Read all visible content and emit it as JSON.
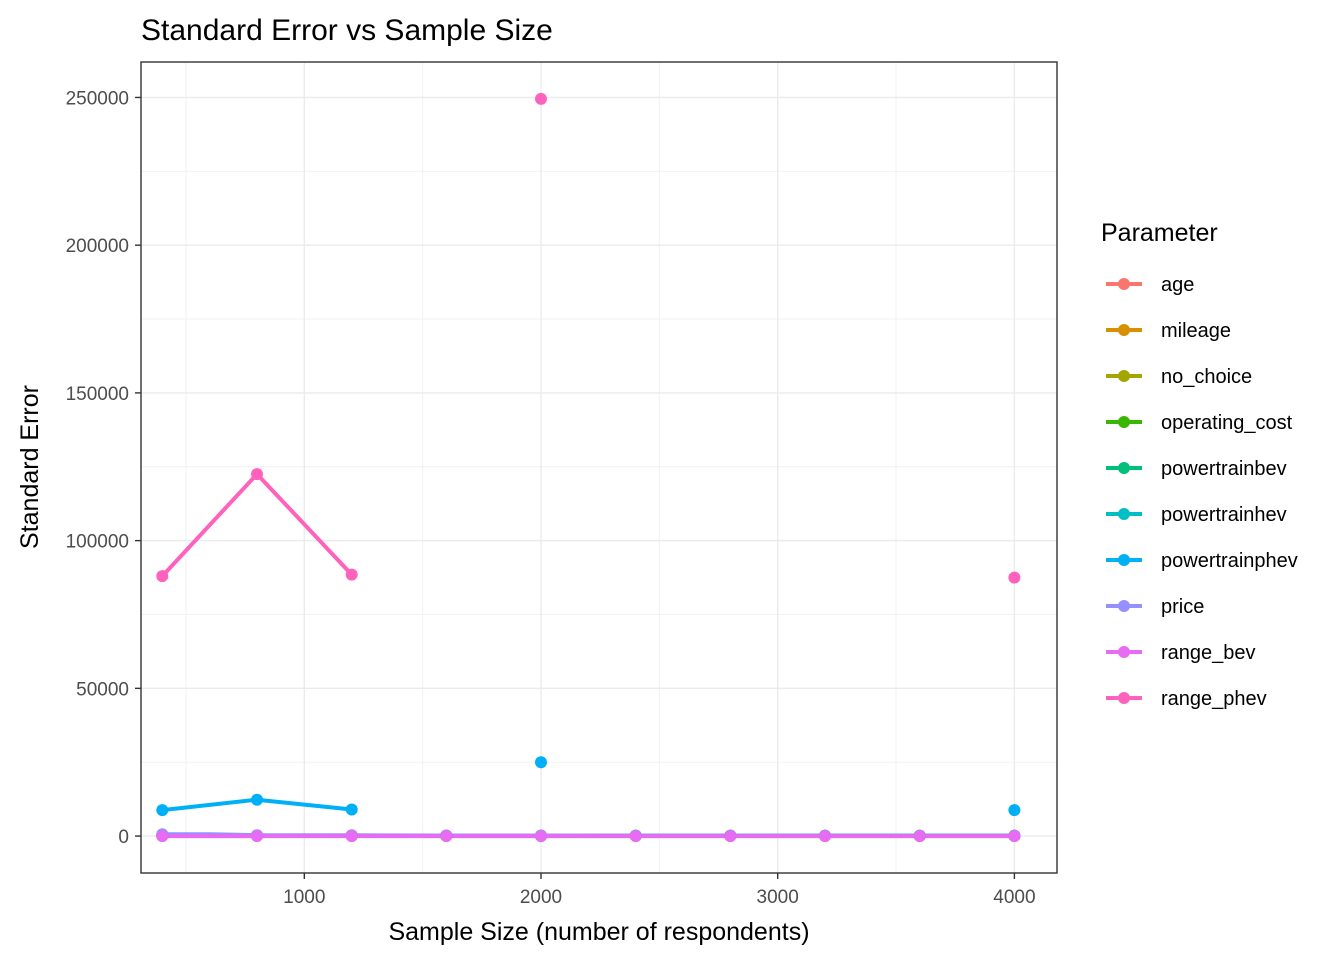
{
  "chart_data": {
    "type": "line",
    "title": "Standard Error vs Sample Size",
    "xlabel": "Sample Size (number of respondents)",
    "ylabel": "Standard Error",
    "xlim": [
      310,
      4180
    ],
    "ylim": [
      -12500,
      262000
    ],
    "xticks": [
      1000,
      2000,
      3000,
      4000
    ],
    "yticks": [
      0,
      50000,
      100000,
      150000,
      200000,
      250000
    ],
    "xticks_minor": [
      500,
      1500,
      2500,
      3500
    ],
    "yticks_minor": [
      25000,
      75000,
      125000,
      175000,
      225000
    ],
    "grid": true,
    "legend": {
      "title": "Parameter",
      "position": "right"
    },
    "series": [
      {
        "name": "age",
        "color": "#F8766D",
        "points": [
          [
            400,
            180
          ],
          [
            800,
            130
          ],
          [
            1200,
            140
          ],
          [
            1600,
            110
          ],
          [
            2000,
            100
          ],
          [
            2400,
            90
          ],
          [
            2800,
            85
          ],
          [
            3200,
            80
          ],
          [
            3600,
            75
          ],
          [
            4000,
            70
          ]
        ]
      },
      {
        "name": "mileage",
        "color": "#D89000",
        "points": [
          [
            400,
            150
          ],
          [
            800,
            110
          ],
          [
            1200,
            120
          ],
          [
            1600,
            95
          ],
          [
            2000,
            90
          ],
          [
            2400,
            80
          ],
          [
            2800,
            75
          ],
          [
            3200,
            70
          ],
          [
            3600,
            65
          ],
          [
            4000,
            60
          ]
        ]
      },
      {
        "name": "no_choice",
        "color": "#A3A500",
        "points": [
          [
            400,
            300
          ],
          [
            800,
            200
          ],
          [
            1200,
            180
          ],
          [
            1600,
            150
          ],
          [
            2000,
            140
          ],
          [
            2400,
            130
          ],
          [
            2800,
            120
          ],
          [
            3200,
            110
          ],
          [
            3600,
            100
          ],
          [
            4000,
            100
          ]
        ]
      },
      {
        "name": "operating_cost",
        "color": "#39B600",
        "points": [
          [
            400,
            200
          ],
          [
            800,
            150
          ],
          [
            1200,
            130
          ],
          [
            1600,
            110
          ],
          [
            2000,
            100
          ],
          [
            2400,
            90
          ],
          [
            2800,
            85
          ],
          [
            3200,
            80
          ],
          [
            3600,
            75
          ],
          [
            4000,
            70
          ]
        ]
      },
      {
        "name": "powertrainbev",
        "color": "#00BF7D",
        "points": [
          [
            400,
            250
          ],
          [
            800,
            180
          ],
          [
            1200,
            160
          ],
          [
            1600,
            130
          ],
          [
            2000,
            120
          ],
          [
            2400,
            110
          ],
          [
            2800,
            100
          ],
          [
            3200,
            95
          ],
          [
            3600,
            90
          ],
          [
            4000,
            85
          ]
        ]
      },
      {
        "name": "powertrainhev",
        "color": "#00BFC4",
        "points": [
          [
            400,
            220
          ],
          [
            800,
            160
          ],
          [
            1200,
            150
          ],
          [
            1600,
            120
          ],
          [
            2000,
            110
          ],
          [
            2400,
            100
          ],
          [
            2800,
            95
          ],
          [
            3200,
            90
          ],
          [
            3600,
            85
          ],
          [
            4000,
            80
          ]
        ]
      },
      {
        "name": "powertrainphev",
        "color": "#00B0F6",
        "points": [
          [
            400,
            8800
          ],
          [
            800,
            12300
          ],
          [
            1200,
            9000
          ],
          [
            2000,
            25000
          ],
          [
            4000,
            8800
          ]
        ]
      },
      {
        "name": "price",
        "color": "#9590FF",
        "points": [
          [
            400,
            600
          ],
          [
            600,
            600
          ],
          [
            800,
            300
          ],
          [
            1200,
            250
          ],
          [
            1600,
            200
          ],
          [
            2000,
            180
          ],
          [
            2400,
            160
          ],
          [
            2800,
            150
          ],
          [
            3200,
            140
          ],
          [
            3600,
            130
          ],
          [
            4000,
            120
          ]
        ]
      },
      {
        "name": "range_bev",
        "color": "#E76BF3",
        "points": [
          [
            400,
            0
          ],
          [
            800,
            0
          ],
          [
            1200,
            0
          ],
          [
            1600,
            0
          ],
          [
            2000,
            0
          ],
          [
            2400,
            0
          ],
          [
            2800,
            0
          ],
          [
            3200,
            0
          ],
          [
            3600,
            0
          ],
          [
            4000,
            0
          ]
        ]
      },
      {
        "name": "range_phev",
        "color": "#FF62BC",
        "points": [
          [
            400,
            88000
          ],
          [
            800,
            122500
          ],
          [
            1200,
            88500
          ],
          [
            2000,
            249500
          ],
          [
            4000,
            87500
          ]
        ]
      }
    ]
  }
}
